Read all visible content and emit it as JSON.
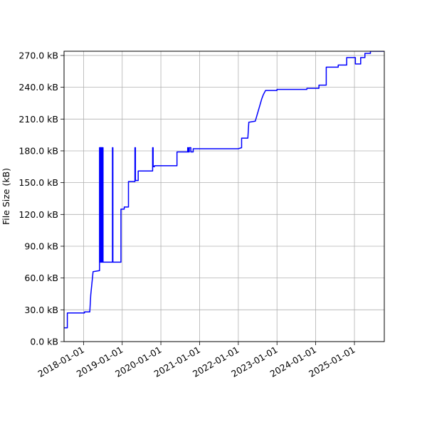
{
  "chart_data": {
    "type": "line",
    "title": "",
    "xlabel": "",
    "ylabel": "File Size (kB)",
    "grid": true,
    "legend": "none",
    "xlim": [
      "2017-07-01",
      "2025-10-10"
    ],
    "ylim": [
      0,
      274000
    ],
    "x_ticks": [
      "2018-01-01",
      "2019-01-01",
      "2020-01-01",
      "2021-01-01",
      "2022-01-01",
      "2023-01-01",
      "2024-01-01",
      "2025-01-01"
    ],
    "y_ticks": [
      {
        "value": 0,
        "label": "0.0 kB"
      },
      {
        "value": 30000,
        "label": "30.0 kB"
      },
      {
        "value": 60000,
        "label": "60.0 kB"
      },
      {
        "value": 90000,
        "label": "90.0 kB"
      },
      {
        "value": 120000,
        "label": "120.0 kB"
      },
      {
        "value": 150000,
        "label": "150.0 kB"
      },
      {
        "value": 180000,
        "label": "180.0 kB"
      },
      {
        "value": 210000,
        "label": "210.0 kB"
      },
      {
        "value": 240000,
        "label": "240.0 kB"
      },
      {
        "value": 270000,
        "label": "270.0 kB"
      }
    ],
    "series": [
      {
        "color": "#0000ff",
        "x": [
          "2017-07-01",
          "2017-08-01",
          "2017-08-01",
          "2018-01-10",
          "2018-01-10",
          "2018-03-01",
          "2018-03-10",
          "2018-04-01",
          "2018-04-01",
          "2018-06-01",
          "2018-06-01",
          "2018-06-06",
          "2018-06-06",
          "2018-06-10",
          "2018-06-10",
          "2018-06-14",
          "2018-06-14",
          "2018-06-18",
          "2018-06-18",
          "2018-06-22",
          "2018-06-22",
          "2018-06-28",
          "2018-06-28",
          "2018-07-04",
          "2018-07-04",
          "2018-10-01",
          "2018-10-01",
          "2018-10-05",
          "2018-10-05",
          "2018-12-20",
          "2018-12-20",
          "2019-01-20",
          "2019-01-20",
          "2019-03-01",
          "2019-03-01",
          "2019-05-01",
          "2019-05-01",
          "2019-05-06",
          "2019-05-06",
          "2019-06-01",
          "2019-06-01",
          "2019-08-01",
          "2019-10-15",
          "2019-10-15",
          "2019-10-20",
          "2019-10-20",
          "2019-11-01",
          "2019-11-01",
          "2020-05-01",
          "2020-06-01",
          "2020-06-01",
          "2020-07-01",
          "2020-09-10",
          "2020-09-10",
          "2020-09-15",
          "2020-09-15",
          "2020-09-25",
          "2020-09-25",
          "2020-10-10",
          "2020-10-10",
          "2020-11-01",
          "2020-11-01",
          "2020-12-15",
          "2021-04-01",
          "2022-01-01",
          "2022-02-01",
          "2022-02-01",
          "2022-04-01",
          "2022-04-10",
          "2022-06-10",
          "2022-08-10",
          "2022-08-25",
          "2022-09-15",
          "2023-01-01",
          "2023-01-01",
          "2023-10-10",
          "2023-10-10",
          "2024-02-01",
          "2024-02-01",
          "2024-04-10",
          "2024-04-10",
          "2024-08-01",
          "2024-08-01",
          "2024-10-20",
          "2024-10-20",
          "2025-01-10",
          "2025-01-10",
          "2025-03-01",
          "2025-03-01",
          "2025-04-10",
          "2025-04-10",
          "2025-06-01",
          "2025-06-01",
          "2025-10-10"
        ],
        "y": [
          13000,
          13000,
          27000,
          27000,
          28000,
          28000,
          44000,
          66000,
          66000,
          67000,
          183000,
          183000,
          75000,
          75000,
          183000,
          183000,
          75000,
          75000,
          183000,
          183000,
          75000,
          75000,
          183000,
          183000,
          75000,
          75000,
          183000,
          183000,
          75000,
          75000,
          125000,
          125000,
          127000,
          127000,
          151000,
          151000,
          183000,
          183000,
          152000,
          152000,
          161000,
          161000,
          161000,
          183000,
          183000,
          165000,
          165000,
          166000,
          166000,
          166000,
          179000,
          179000,
          179000,
          183000,
          183000,
          179000,
          179000,
          183000,
          183000,
          179000,
          179000,
          182000,
          182000,
          182000,
          182000,
          183000,
          192000,
          192000,
          207000,
          208000,
          229000,
          233000,
          237000,
          237000,
          238000,
          238000,
          239000,
          239000,
          242000,
          242000,
          259000,
          259000,
          261000,
          261000,
          268000,
          268000,
          262000,
          262000,
          268000,
          268000,
          272000,
          272000,
          274000,
          274000
        ]
      }
    ]
  }
}
